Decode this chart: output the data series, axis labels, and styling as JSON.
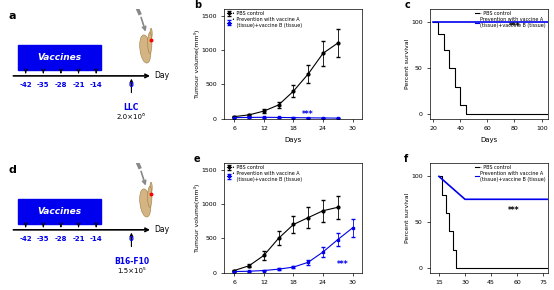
{
  "panel_a": {
    "label": "a",
    "vaccine_days": [
      -42,
      -35,
      -28,
      -21,
      -14
    ],
    "timeline_label": "Day",
    "box_label": "Vaccines",
    "cell_line": "LLC",
    "cell_dose": "2.0×10⁶",
    "box_color": "#0000EE",
    "text_color": "#0000EE",
    "arrow_color": "black"
  },
  "panel_d": {
    "label": "d",
    "vaccine_days": [
      -42,
      -35,
      -28,
      -21,
      -14
    ],
    "timeline_label": "Day",
    "box_label": "Vaccines",
    "cell_line": "B16-F10",
    "cell_dose": "1.5×10⁵",
    "box_color": "#0000EE",
    "text_color": "#0000EE",
    "arrow_color": "black"
  },
  "panel_b": {
    "label": "b",
    "xlabel": "Days",
    "ylabel": "Tumour volume(mm³)",
    "ylim": [
      0,
      1600
    ],
    "yticks": [
      0,
      500,
      1000,
      1500
    ],
    "xlim": [
      4,
      32
    ],
    "xticks": [
      6,
      12,
      18,
      24,
      30
    ],
    "pbs_days": [
      6,
      9,
      12,
      15,
      18,
      21,
      24,
      27
    ],
    "pbs_mean": [
      30,
      55,
      110,
      200,
      400,
      650,
      950,
      1100
    ],
    "pbs_err": [
      8,
      12,
      25,
      40,
      90,
      130,
      180,
      200
    ],
    "vac_days": [
      6,
      9,
      12,
      15,
      18,
      21,
      24,
      27
    ],
    "vac_mean": [
      15,
      18,
      20,
      18,
      15,
      12,
      10,
      8
    ],
    "vac_err": [
      4,
      4,
      5,
      4,
      4,
      4,
      3,
      3
    ],
    "pbs_color": "#000000",
    "vac_color": "#0000EE",
    "legend1": "• PBS control",
    "legend2": "• Prevention with vaccine A\n   (tissue)+vaccine B (tissue)",
    "sig_text": "***",
    "sig_x": 21,
    "sig_y": 25
  },
  "panel_c": {
    "label": "c",
    "xlabel": "Days",
    "ylabel": "Percent survival",
    "ylim": [
      -5,
      115
    ],
    "yticks": [
      0,
      50,
      100
    ],
    "xlim": [
      18,
      105
    ],
    "xticks": [
      20,
      40,
      60,
      80,
      100
    ],
    "pbs_days": [
      20,
      24,
      28,
      32,
      36,
      40,
      44,
      105
    ],
    "pbs_survival": [
      100,
      87,
      70,
      50,
      30,
      10,
      0,
      0
    ],
    "vac_days": [
      20,
      105
    ],
    "vac_survival": [
      100,
      100
    ],
    "pbs_color": "#000000",
    "vac_color": "#0000EE",
    "legend1": "- PBS control",
    "legend2": "Prevention with vaccine A\n(tissue)+vaccine B (tissue)",
    "sig_text": "***",
    "sig_x": 80,
    "sig_y": 93
  },
  "panel_e": {
    "label": "e",
    "xlabel": "Days",
    "ylabel": "Tumour volume(mm³)",
    "ylim": [
      0,
      1600
    ],
    "yticks": [
      0,
      500,
      1000,
      1500
    ],
    "xlim": [
      4,
      32
    ],
    "xticks": [
      6,
      12,
      18,
      24,
      30
    ],
    "pbs_days": [
      6,
      9,
      12,
      15,
      18,
      21,
      24,
      27
    ],
    "pbs_mean": [
      30,
      100,
      250,
      500,
      700,
      800,
      900,
      950
    ],
    "pbs_err": [
      8,
      25,
      60,
      100,
      130,
      150,
      160,
      170
    ],
    "vac_days": [
      6,
      9,
      12,
      15,
      18,
      21,
      24,
      27,
      30
    ],
    "vac_mean": [
      15,
      20,
      30,
      50,
      80,
      150,
      300,
      480,
      650
    ],
    "vac_err": [
      4,
      5,
      8,
      12,
      20,
      40,
      70,
      100,
      130
    ],
    "pbs_color": "#000000",
    "vac_color": "#0000EE",
    "legend1": "• PBS control",
    "legend2": "• Prevention with vaccine A\n   (tissue)+vaccine B (tissue)",
    "sig_text": "***",
    "sig_x": 28,
    "sig_y": 80
  },
  "panel_f": {
    "label": "f",
    "xlabel": "Days",
    "ylabel": "Percent survival",
    "ylim": [
      -5,
      115
    ],
    "yticks": [
      0,
      50,
      100
    ],
    "xlim": [
      10,
      78
    ],
    "xticks": [
      15,
      30,
      45,
      60,
      75
    ],
    "pbs_days": [
      15,
      17,
      19,
      21,
      23,
      25,
      27,
      78
    ],
    "pbs_survival": [
      100,
      80,
      60,
      40,
      20,
      0,
      0,
      0
    ],
    "vac_days": [
      15,
      30,
      78
    ],
    "vac_survival": [
      100,
      75,
      75
    ],
    "pbs_color": "#000000",
    "vac_color": "#0000EE",
    "legend1": "- PBS control",
    "legend2": "Prevention with vaccine A\n(tissue)+vaccine B (tissue)",
    "sig_text": "***",
    "sig_x": 58,
    "sig_y": 60
  },
  "bg_color": "#FFFFFF"
}
